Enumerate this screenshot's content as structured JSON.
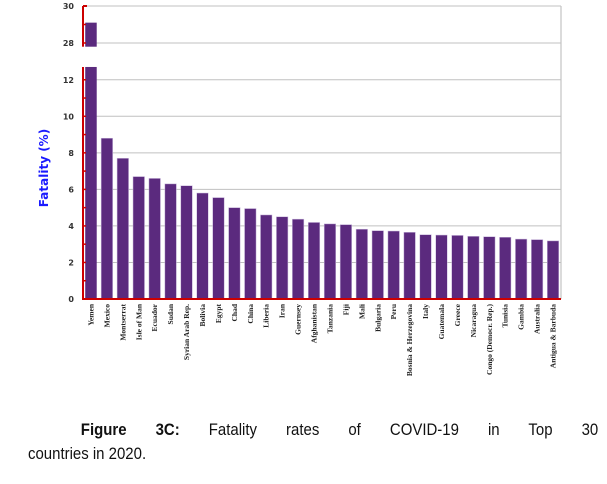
{
  "chart_data": {
    "type": "bar",
    "title": "",
    "xlabel": "",
    "ylabel": "Fatality (%)",
    "categories": [
      "Yemen",
      "Mexico",
      "Montserrat",
      "Isle of Man",
      "Ecuador",
      "Sudan",
      "Syrian Arab Rep.",
      "Bolivia",
      "Egypt",
      "Chad",
      "China",
      "Liberia",
      "Iran",
      "Guernsey",
      "Afghanistan",
      "Tanzania",
      "Fiji",
      "Mali",
      "Bulgaria",
      "Peru",
      "Bosnia & Herzegovina",
      "Italy",
      "Guatemala",
      "Greece",
      "Nicaragua",
      "Congo (Democr. Rep.)",
      "Tunisia",
      "Gambia",
      "Australia",
      "Antigua & Barbuda"
    ],
    "values": [
      29.1,
      8.8,
      7.7,
      6.7,
      6.6,
      6.3,
      6.2,
      5.8,
      5.55,
      5.0,
      4.95,
      4.6,
      4.5,
      4.37,
      4.19,
      4.11,
      4.07,
      3.82,
      3.74,
      3.72,
      3.65,
      3.52,
      3.5,
      3.48,
      3.43,
      3.41,
      3.38,
      3.28,
      3.25,
      3.18
    ],
    "broken_axis": {
      "lower_range": [
        0,
        12.7
      ],
      "upper_range": [
        27.8,
        30
      ],
      "lower_ticks": [
        0,
        2,
        4,
        6,
        8,
        10,
        12
      ],
      "upper_ticks": [
        28,
        30
      ]
    },
    "ylim": [
      0,
      30
    ],
    "grid": true,
    "legend": "none",
    "colors": {
      "bar": "#5b2a7e",
      "axis": "#cc0000",
      "grid": "#c0c0c0",
      "ylabel": "#1a1aff"
    }
  },
  "caption": {
    "label": "Figure 3C:",
    "text_line1": "Fatality rates of COVID-19 in Top 30",
    "text_line2": "countries in 2020."
  }
}
